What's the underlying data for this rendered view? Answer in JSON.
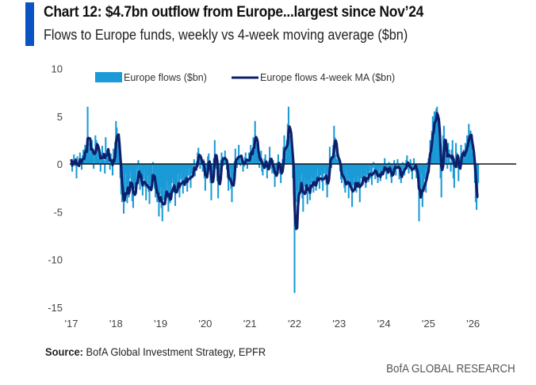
{
  "header": {
    "title": "Chart 12: $4.7bn outflow from Europe...largest since Nov’24",
    "subtitle": "Flows to Europe funds, weekly vs 4-week moving average ($bn)"
  },
  "footer": {
    "source_label": "Source:",
    "source_text": " BofA Global Investment Strategy, EPFR",
    "brand": "BofA GLOBAL RESEARCH"
  },
  "colors": {
    "accent": "#0a53c4",
    "bars": "#1a9ad6",
    "ma_line": "#0d1f6b",
    "zero_line": "#111111"
  },
  "chart_data": {
    "type": "bar",
    "title": "Chart 12: $4.7bn outflow from Europe...largest since Nov’24",
    "subtitle": "Flows to Europe funds, weekly vs 4-week moving average ($bn)",
    "xlabel": "",
    "ylabel": "",
    "ylim": [
      -15,
      10
    ],
    "yticks": [
      10,
      5,
      0,
      -5,
      -10,
      -15
    ],
    "ytick_labels": [
      "10",
      "5",
      "0",
      "-5",
      "-10",
      "-15"
    ],
    "xlim": [
      2017.0,
      2027.0
    ],
    "xticks": [
      2017,
      2018,
      2019,
      2020,
      2021,
      2022,
      2023,
      2024,
      2025,
      2026
    ],
    "xtick_labels": [
      "'17",
      "'18",
      "'19",
      "'20",
      "'21",
      "'22",
      "'23",
      "'24",
      "'25",
      "'26"
    ],
    "grid": false,
    "legend": {
      "placement": "top-center",
      "entries": [
        "Europe flows ($bn)",
        "Europe flows 4-week MA ($bn)"
      ]
    },
    "x_start": 2017.0,
    "x_step_years": 0.019231,
    "series": [
      {
        "name": "Europe flows ($bn)",
        "type": "bar",
        "values": [
          0.5,
          -0.8,
          0.3,
          1.0,
          -0.2,
          0.6,
          -1.5,
          0.8,
          0.2,
          -0.3,
          1.2,
          0.5,
          -0.6,
          0.9,
          1.5,
          0.4,
          2.0,
          1.8,
          0.9,
          6.0,
          2.2,
          1.6,
          0.8,
          1.5,
          2.5,
          1.0,
          -0.5,
          1.2,
          3.0,
          2.5,
          1.6,
          0.5,
          1.8,
          0.9,
          -0.8,
          0.6,
          1.9,
          1.2,
          0.4,
          -1.0,
          2.8,
          1.5,
          0.9,
          1.0,
          0.2,
          -0.6,
          1.1,
          0.3,
          -1.2,
          1.6,
          0.5,
          2.3,
          4.5,
          3.8,
          1.4,
          2.6,
          0.8,
          -1.5,
          -3.2,
          -4.0,
          -2.5,
          -5.2,
          -3.6,
          -1.0,
          -2.8,
          -4.1,
          -2.0,
          -3.5,
          -1.5,
          -0.8,
          -2.2,
          -3.9,
          -4.6,
          -1.8,
          -2.6,
          -3.1,
          -0.5,
          -1.9,
          0.4,
          -1.2,
          -2.7,
          -1.0,
          -2.0,
          -3.3,
          -1.6,
          -0.6,
          -2.4,
          -3.8,
          -2.0,
          -1.2,
          -2.9,
          -4.2,
          -1.5,
          -2.3,
          -1.0,
          0.2,
          -1.8,
          -2.6,
          -3.5,
          -2.0,
          -4.0,
          -2.8,
          -5.5,
          -3.2,
          -2.4,
          -4.6,
          -6.0,
          -3.8,
          -2.5,
          -4.3,
          -3.0,
          -1.8,
          -3.6,
          -5.0,
          -2.2,
          -4.1,
          -3.4,
          -2.0,
          -1.5,
          -3.0,
          -2.6,
          -4.4,
          -1.9,
          -2.8,
          -1.0,
          -2.4,
          -3.5,
          -1.6,
          -0.8,
          -2.0,
          -3.1,
          -1.4,
          -2.2,
          -0.6,
          -1.8,
          -2.9,
          -1.2,
          -0.4,
          -1.6,
          -2.5,
          -1.0,
          -0.2,
          -0.9,
          0.5,
          -1.3,
          -0.7,
          0.3,
          1.2,
          1.7,
          0.6,
          -0.5,
          1.0,
          0.2,
          -0.8,
          0.5,
          -1.5,
          -2.8,
          -1.0,
          -0.3,
          0.8,
          1.1,
          -0.6,
          -2.0,
          -3.8,
          -1.2,
          -0.4,
          0.6,
          2.5,
          1.0,
          -0.5,
          -1.8,
          -3.6,
          -2.2,
          -0.8,
          0.4,
          1.2,
          0.8,
          -0.2,
          0.5,
          1.4,
          0.3,
          -0.6,
          -1.5,
          -2.8,
          -1.4,
          -0.5,
          -2.6,
          -4.0,
          -1.8,
          -0.6,
          0.3,
          1.6,
          0.5,
          -0.4,
          0.8,
          2.0,
          0.6,
          -0.2,
          1.0,
          0.4,
          -0.8,
          -0.3,
          0.7,
          1.2,
          0.2,
          -0.5,
          0.6,
          1.2,
          0.4,
          2.0,
          1.5,
          0.3,
          2.8,
          2.2,
          4.5,
          1.8,
          2.2,
          0.9,
          0.5,
          -0.4,
          0.6,
          1.4,
          -0.8,
          -1.2,
          -0.2,
          0.6,
          1.0,
          -0.4,
          -1.5,
          -0.6,
          0.3,
          1.8,
          0.5,
          -0.5,
          -1.0,
          0.4,
          -0.8,
          -2.4,
          -1.2,
          -0.5,
          0.2,
          1.0,
          -0.3,
          -1.0,
          -2.0,
          -0.6,
          0.5,
          1.8,
          3.0,
          1.2,
          0.6,
          2.5,
          4.2,
          6.0,
          3.0,
          1.5,
          2.5,
          1.0,
          -1.5,
          -3.2,
          -13.5,
          -6.5,
          -4.0,
          -2.8,
          -4.5,
          -1.8,
          -3.0,
          -2.2,
          -1.0,
          -3.6,
          -5.0,
          -2.4,
          -1.5,
          -3.0,
          -2.0,
          -4.2,
          -1.6,
          -2.5,
          -3.8,
          -1.2,
          -2.0,
          -1.5,
          -3.0,
          -2.2,
          -1.0,
          -2.8,
          -1.6,
          -0.5,
          -1.8,
          -2.6,
          -1.2,
          -0.6,
          -1.9,
          -2.8,
          -1.0,
          -0.3,
          -1.4,
          -2.2,
          -3.5,
          -1.0,
          0.0,
          1.8,
          0.8,
          -0.4,
          0.6,
          2.0,
          4.0,
          2.8,
          1.0,
          0.5,
          0.2,
          1.0,
          0.4,
          -0.8,
          -1.6,
          -2.0,
          -0.5,
          -1.2,
          -2.5,
          -3.0,
          -1.8,
          -0.6,
          -2.2,
          -3.6,
          -1.5,
          -2.0,
          -2.8,
          -4.5,
          -2.2,
          -1.4,
          -2.6,
          -1.8,
          -3.0,
          -2.0,
          -1.2,
          -2.5,
          -4.0,
          -1.5,
          -0.8,
          -1.6,
          -2.2,
          -1.0,
          -1.8,
          -2.5,
          -0.6,
          -1.2,
          -1.9,
          -0.8,
          -0.2,
          -1.5,
          -2.2,
          -0.4,
          0.2,
          -1.0,
          -1.6,
          -0.6,
          -0.9,
          -2.0,
          -1.2,
          -0.4,
          -1.8,
          -0.9,
          -0.3,
          -1.2,
          -0.5,
          0.6,
          -0.8,
          -1.6,
          -0.2,
          -1.0,
          0.2,
          -0.6,
          -1.4,
          -2.0,
          -0.8,
          -0.2,
          0.4,
          -0.5,
          -1.2,
          -0.3,
          0.5,
          -0.2,
          -1.6,
          -0.8,
          -2.0,
          -1.0,
          0.2,
          -0.6,
          -1.2,
          -0.4,
          0.4,
          0.9,
          -0.3,
          -1.0,
          -0.5,
          0.5,
          -0.8,
          -1.6,
          -0.2,
          0.6,
          0.0,
          -0.8,
          -1.5,
          -0.4,
          -2.5,
          -6.0,
          -2.0,
          -3.5,
          -1.0,
          -4.5,
          -2.2,
          -1.6,
          -0.5,
          -3.0,
          -1.0,
          0.2,
          0.6,
          1.0,
          2.5,
          1.5,
          3.5,
          5.0,
          3.2,
          5.5,
          4.0,
          5.8,
          6.0,
          4.5,
          2.5,
          1.5,
          -1.5,
          -3.5,
          1.0,
          3.0,
          4.0,
          2.0,
          1.0,
          0.6,
          -0.5,
          2.2,
          1.5,
          0.2,
          -0.8,
          1.5,
          2.5,
          -1.5,
          -2.5,
          0.6,
          2.2,
          1.2,
          -0.4,
          -1.8,
          -0.5,
          0.8,
          2.0,
          1.0,
          0.4,
          1.5,
          0.6,
          2.2,
          1.0,
          3.0,
          1.8,
          4.2,
          2.5,
          3.5,
          2.0,
          1.2,
          0.5,
          0.8,
          -2.0,
          -4.0,
          -4.8,
          -3.0,
          -2.0
        ]
      },
      {
        "name": "Europe flows 4-week MA ($bn)",
        "type": "line",
        "derived_from": "4-week moving average of Europe flows ($bn)"
      }
    ]
  }
}
